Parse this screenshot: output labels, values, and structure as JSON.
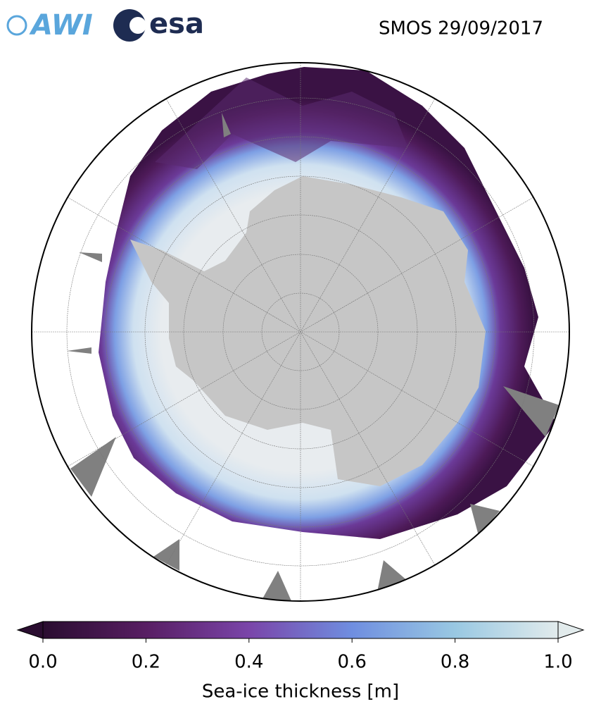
{
  "header": {
    "logos": [
      "AWI",
      "esa"
    ],
    "title": "SMOS 29/09/2017"
  },
  "colorbar": {
    "label": "Sea-ice thickness [m]",
    "lim": [
      0,
      1
    ],
    "ticks": [
      {
        "value": 0,
        "label": "0.0"
      },
      0.2,
      0.4,
      0.6,
      0.8,
      {
        "value": 1,
        "label": "1.0"
      }
    ]
  }
}
